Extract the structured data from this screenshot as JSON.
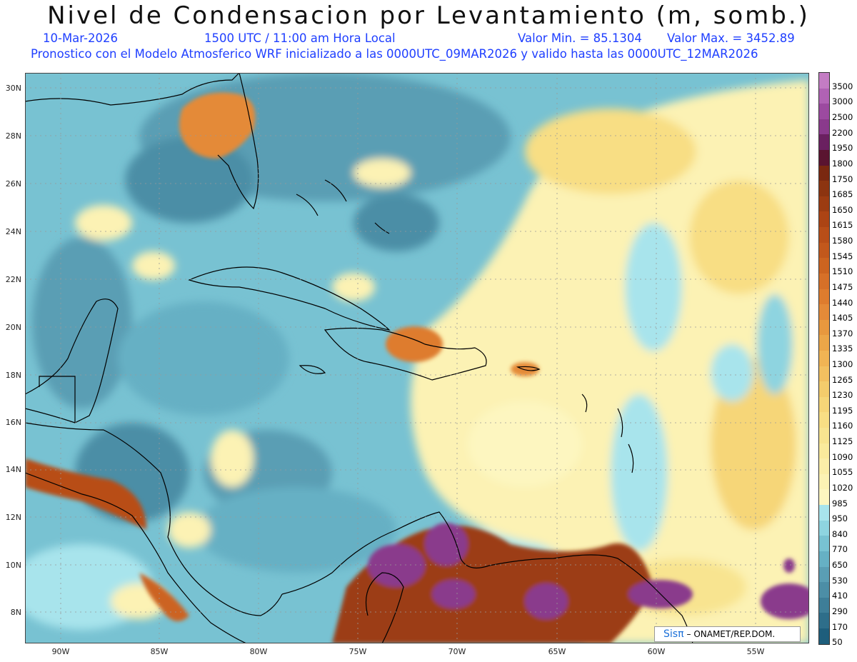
{
  "header": {
    "title": "Nivel de Condensacion por Levantamiento (m, somb.)",
    "date": "10-Mar-2026",
    "time": "1500 UTC / 11:00 am Hora Local",
    "valmin": "Valor Min. = 85.1304",
    "valmax": "Valor Max. = 3452.89",
    "forecast": "Pronostico con el Modelo Atmosferico WRF inicializado a las 0000UTC_09MAR2026 y valido hasta las  0000UTC_12MAR2026"
  },
  "latitudes": [
    "30N",
    "28N",
    "26N",
    "24N",
    "22N",
    "20N",
    "18N",
    "16N",
    "14N",
    "12N",
    "10N",
    "8N"
  ],
  "longitudes": [
    "90W",
    "85W",
    "80W",
    "75W",
    "70W",
    "65W",
    "60W",
    "55W"
  ],
  "colorbar": {
    "labels": [
      "3500",
      "3000",
      "2500",
      "2200",
      "1950",
      "1800",
      "1750",
      "1685",
      "1650",
      "1615",
      "1580",
      "1545",
      "1510",
      "1475",
      "1440",
      "1405",
      "1370",
      "1335",
      "1300",
      "1265",
      "1230",
      "1195",
      "1160",
      "1125",
      "1090",
      "1055",
      "1020",
      "985",
      "950",
      "840",
      "770",
      "650",
      "530",
      "410",
      "290",
      "170",
      "50"
    ],
    "colors": [
      "#c47cc4",
      "#b062b4",
      "#9c4aa0",
      "#8a3a8c",
      "#6a2060",
      "#5a1430",
      "#7a2810",
      "#8c3410",
      "#9c3c12",
      "#ac4414",
      "#b84e18",
      "#c2581c",
      "#cc6420",
      "#d67028",
      "#de7c2e",
      "#e48a38",
      "#e8983e",
      "#eca648",
      "#f0b454",
      "#f2c060",
      "#f4cc6c",
      "#f6d678",
      "#f8de84",
      "#f8e490",
      "#faea9c",
      "#fbeea8",
      "#fcf2b4",
      "#fdf6c0",
      "#a8e4ec",
      "#8ed4e0",
      "#78c2d2",
      "#66b0c4",
      "#5a9eb4",
      "#4c8ea6",
      "#3e7e98",
      "#2e6e8a",
      "#1e5e7c"
    ]
  },
  "credit": {
    "brand": "Sisπ",
    "text": "– ONAMET/REP.DOM."
  }
}
